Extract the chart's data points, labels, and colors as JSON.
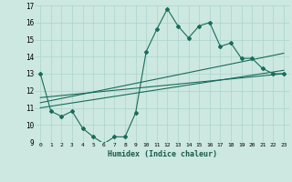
{
  "xlabel": "Humidex (Indice chaleur)",
  "bg_color": "#cce8e0",
  "grid_color": "#aad4cc",
  "line_color": "#1a6b5a",
  "xlim": [
    -0.5,
    23.5
  ],
  "ylim": [
    9,
    17
  ],
  "yticks": [
    9,
    10,
    11,
    12,
    13,
    14,
    15,
    16,
    17
  ],
  "xticks": [
    0,
    1,
    2,
    3,
    4,
    5,
    6,
    7,
    8,
    9,
    10,
    11,
    12,
    13,
    14,
    15,
    16,
    17,
    18,
    19,
    20,
    21,
    22,
    23
  ],
  "main_x": [
    0,
    1,
    2,
    3,
    4,
    5,
    6,
    7,
    8,
    9,
    10,
    11,
    12,
    13,
    14,
    15,
    16,
    17,
    18,
    19,
    20,
    21,
    22,
    23
  ],
  "main_y": [
    13.0,
    10.8,
    10.5,
    10.8,
    9.8,
    9.3,
    8.9,
    9.3,
    9.3,
    10.7,
    14.3,
    15.6,
    16.8,
    15.8,
    15.1,
    15.8,
    16.0,
    14.6,
    14.8,
    13.9,
    13.9,
    13.3,
    13.0,
    13.0
  ],
  "line1_x": [
    0,
    23
  ],
  "line1_y": [
    11.0,
    13.2
  ],
  "line2_x": [
    0,
    23
  ],
  "line2_y": [
    11.3,
    14.2
  ],
  "line3_x": [
    0,
    23
  ],
  "line3_y": [
    11.6,
    13.0
  ]
}
